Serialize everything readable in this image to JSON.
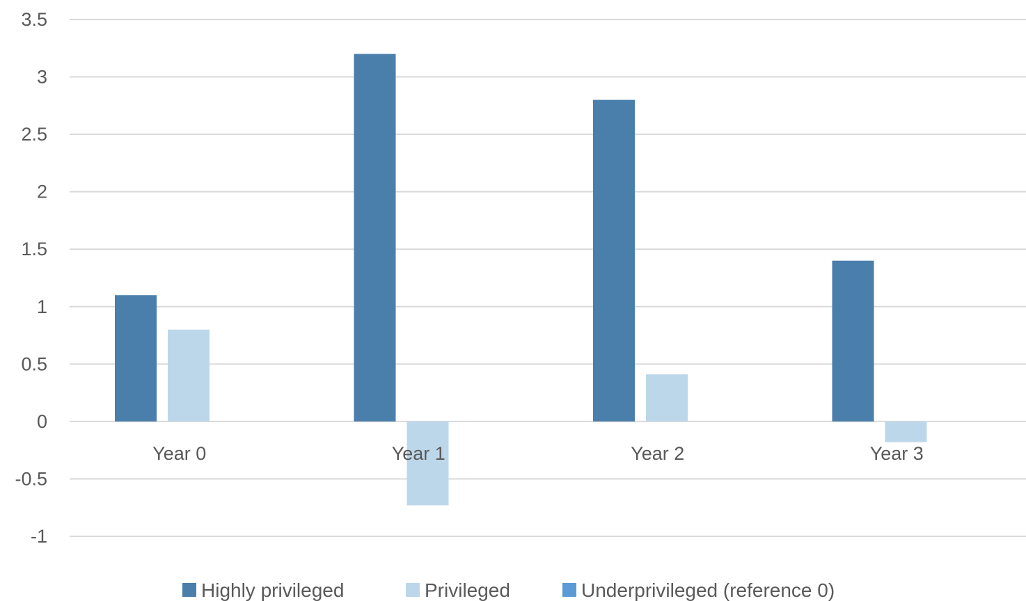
{
  "chart_data": {
    "type": "bar",
    "categories": [
      "Year 0",
      "Year 1",
      "Year 2",
      "Year 3"
    ],
    "series": [
      {
        "name": "Highly privileged",
        "values": [
          1.1,
          3.2,
          2.8,
          1.4
        ],
        "color": "#4a7eab"
      },
      {
        "name": "Privileged",
        "values": [
          0.8,
          -0.73,
          0.41,
          -0.18
        ],
        "color": "#bdd7ea"
      },
      {
        "name": "Underprivileged (reference 0)",
        "values": [
          0,
          0,
          0,
          0
        ],
        "color": "#5b9bd5"
      }
    ],
    "yticks": [
      "3.5",
      "3",
      "2.5",
      "2",
      "1.5",
      "1",
      "0.5",
      "0",
      "-0.5",
      "-1"
    ],
    "ylim": [
      -1,
      3.5
    ],
    "grid": true,
    "legend_position": "bottom",
    "gridline_color": "#d9d9d9"
  }
}
